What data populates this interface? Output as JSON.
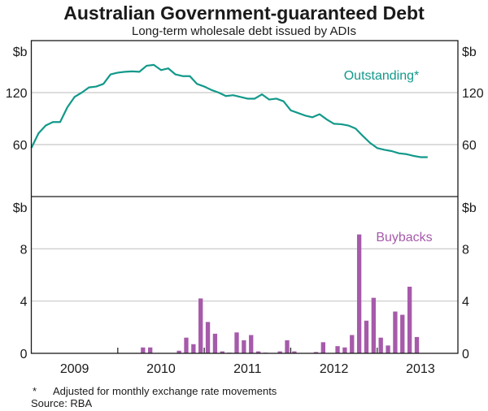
{
  "chart_data": [
    {
      "type": "line",
      "title": "Australian Government-guaranteed Debt",
      "subtitle": "Long-term wholesale debt issued by ADIs",
      "ylabel": "$b",
      "ylim": [
        0,
        180
      ],
      "yticks": [
        "60",
        "120"
      ],
      "ytick_values": [
        60,
        120
      ],
      "x_unit": "months since Jan 2009",
      "xlim": [
        0,
        59.2
      ],
      "series": [
        {
          "name": "Outstanding*",
          "color": "#12998a",
          "x": [
            0,
            1,
            2,
            3,
            4,
            5,
            6,
            7,
            8,
            9,
            10,
            11,
            12,
            13,
            14,
            15,
            16,
            17,
            18,
            19,
            20,
            21,
            22,
            23,
            24,
            25,
            26,
            27,
            28,
            29,
            30,
            31,
            32,
            33,
            34,
            35,
            36,
            37,
            38,
            39,
            40,
            41,
            42,
            43,
            44,
            45,
            46,
            47,
            48,
            49,
            50,
            51,
            52,
            53,
            54,
            55
          ],
          "values": [
            56,
            73,
            82,
            86,
            86,
            103,
            115,
            120,
            126,
            127,
            130,
            141,
            143,
            144,
            144.5,
            144,
            151,
            152,
            146,
            148,
            141,
            139,
            139,
            130,
            127,
            123,
            120,
            116,
            117,
            115,
            113,
            113,
            118,
            112,
            113,
            110,
            99.5,
            96.5,
            93.5,
            91.5,
            95,
            89,
            84,
            83.5,
            82,
            78.5,
            70,
            62,
            56,
            54,
            52.5,
            50,
            49,
            47,
            45.5,
            45.5
          ]
        }
      ],
      "annotation": "Outstanding*"
    },
    {
      "type": "bar",
      "ylabel": "$b",
      "ylim": [
        0,
        12
      ],
      "yticks": [
        "0",
        "4",
        "8"
      ],
      "ytick_values": [
        0,
        4,
        8
      ],
      "x_unit": "months since Jan 2009",
      "xlim": [
        0,
        59.2
      ],
      "xtick_labels": [
        "2009",
        "2010",
        "2011",
        "2012",
        "2013"
      ],
      "series": [
        {
          "name": "Buybacks",
          "color": "#a65aaa",
          "x": [
            15,
            16,
            20,
            21,
            22,
            23,
            24,
            25,
            26,
            27,
            28,
            29,
            30,
            31,
            32,
            34,
            35,
            36,
            39,
            40,
            42,
            43,
            44,
            45,
            46,
            47,
            48,
            49,
            50,
            51,
            52,
            53
          ],
          "values": [
            0.45,
            0.45,
            0.2,
            1.2,
            0.7,
            4.2,
            2.4,
            1.5,
            0.15,
            0.05,
            1.6,
            1.0,
            1.4,
            0.15,
            0.05,
            0.15,
            1.0,
            0.15,
            0.1,
            0.85,
            0.55,
            0.45,
            1.4,
            9.1,
            2.5,
            4.25,
            1.2,
            0.6,
            3.2,
            2.95,
            5.1,
            1.25
          ]
        }
      ],
      "annotation": "Buybacks"
    }
  ],
  "footnote": "Adjusted for monthly exchange rate movements",
  "footnote_marker": "*",
  "source": "Source: RBA"
}
